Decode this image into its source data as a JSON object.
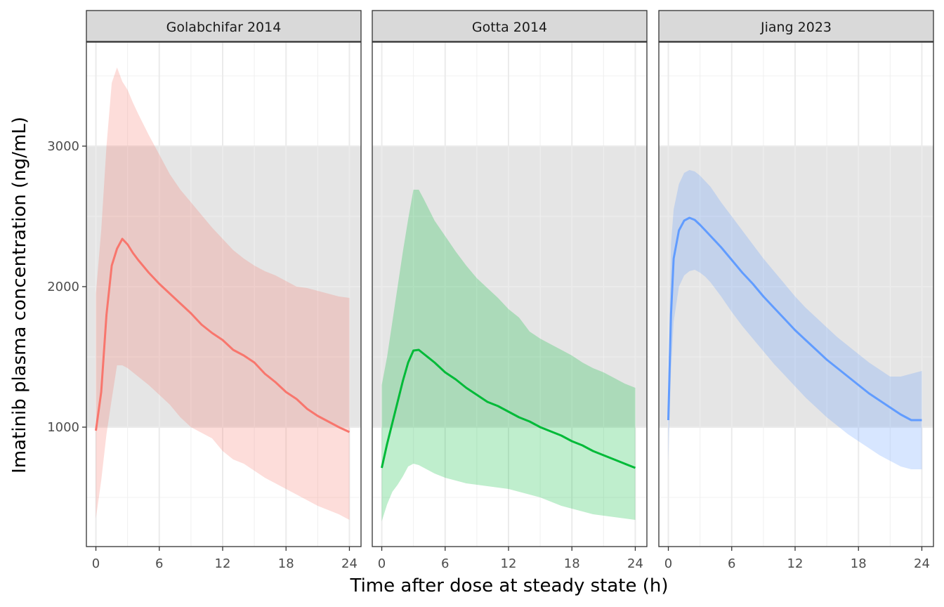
{
  "chart_data": {
    "type": "line",
    "xlabel": "Time after dose at steady state (h)",
    "ylabel": "Imatinib plasma concentration (ng/mL)",
    "xlim": [
      -0.9,
      25.1
    ],
    "ylim": [
      150,
      3740
    ],
    "x_ticks": [
      0,
      6,
      12,
      18,
      24
    ],
    "y_ticks": [
      1000,
      2000,
      3000
    ],
    "x_tick_labels": [
      "0",
      "6",
      "12",
      "18",
      "24"
    ],
    "y_tick_labels": [
      "1000",
      "2000",
      "3000"
    ],
    "grid": true,
    "reference_band": {
      "ymin": 1000,
      "ymax": 3000,
      "color": "#e5e5e5"
    },
    "panels": [
      {
        "strip": "Golabchifar 2014",
        "color": "#F8766D",
        "fill": "#F8766D",
        "x": [
          0,
          0.5,
          1,
          1.5,
          2,
          2.5,
          3,
          3.5,
          4,
          5,
          6,
          7,
          8,
          9,
          10,
          11,
          12,
          13,
          14,
          15,
          16,
          17,
          18,
          19,
          20,
          21,
          22,
          23,
          24
        ],
        "median": [
          975,
          1250,
          1800,
          2150,
          2270,
          2340,
          2300,
          2240,
          2190,
          2100,
          2020,
          1950,
          1880,
          1810,
          1730,
          1670,
          1620,
          1550,
          1510,
          1460,
          1380,
          1320,
          1250,
          1200,
          1130,
          1080,
          1040,
          1000,
          965
        ],
        "lower": [
          350,
          620,
          950,
          1200,
          1440,
          1440,
          1420,
          1390,
          1360,
          1300,
          1230,
          1160,
          1070,
          1000,
          960,
          920,
          830,
          770,
          740,
          690,
          640,
          600,
          560,
          520,
          480,
          440,
          410,
          380,
          340
        ],
        "upper": [
          1950,
          2400,
          3000,
          3450,
          3560,
          3460,
          3400,
          3310,
          3230,
          3080,
          2940,
          2800,
          2690,
          2600,
          2510,
          2420,
          2340,
          2260,
          2200,
          2150,
          2110,
          2080,
          2040,
          2000,
          1990,
          1970,
          1950,
          1930,
          1920
        ]
      },
      {
        "strip": "Gotta 2014",
        "color": "#00BA38",
        "fill": "#00BA38",
        "x": [
          0,
          0.5,
          1,
          1.5,
          2,
          2.5,
          3,
          3.5,
          4,
          5,
          6,
          7,
          8,
          9,
          10,
          11,
          12,
          13,
          14,
          15,
          16,
          17,
          18,
          19,
          20,
          21,
          22,
          23,
          24
        ],
        "median": [
          710,
          880,
          1030,
          1180,
          1330,
          1460,
          1545,
          1550,
          1520,
          1460,
          1390,
          1340,
          1280,
          1230,
          1180,
          1150,
          1110,
          1070,
          1040,
          1000,
          970,
          940,
          900,
          870,
          830,
          800,
          770,
          740,
          710
        ],
        "lower": [
          330,
          450,
          540,
          590,
          650,
          720,
          740,
          730,
          710,
          670,
          640,
          620,
          600,
          590,
          580,
          570,
          560,
          540,
          520,
          500,
          470,
          440,
          420,
          400,
          380,
          370,
          360,
          350,
          340
        ],
        "upper": [
          1300,
          1500,
          1750,
          2000,
          2250,
          2480,
          2690,
          2690,
          2620,
          2470,
          2360,
          2250,
          2150,
          2060,
          1990,
          1920,
          1840,
          1780,
          1680,
          1630,
          1590,
          1550,
          1510,
          1460,
          1420,
          1390,
          1350,
          1310,
          1280
        ]
      },
      {
        "strip": "Jiang 2023",
        "color": "#619CFF",
        "fill": "#619CFF",
        "x": [
          0,
          0.25,
          0.5,
          1,
          1.5,
          2,
          2.5,
          3,
          3.5,
          4,
          5,
          6,
          7,
          8,
          9,
          10,
          11,
          12,
          13,
          14,
          15,
          16,
          17,
          18,
          19,
          20,
          21,
          22,
          23,
          24
        ],
        "median": [
          1050,
          1800,
          2200,
          2400,
          2470,
          2490,
          2475,
          2440,
          2400,
          2360,
          2280,
          2190,
          2100,
          2020,
          1930,
          1850,
          1770,
          1690,
          1620,
          1550,
          1480,
          1420,
          1360,
          1300,
          1240,
          1190,
          1140,
          1090,
          1050,
          1050
        ],
        "lower": [
          760,
          1400,
          1750,
          2000,
          2080,
          2110,
          2120,
          2100,
          2070,
          2030,
          1930,
          1820,
          1720,
          1630,
          1540,
          1450,
          1370,
          1290,
          1210,
          1140,
          1070,
          1010,
          950,
          900,
          850,
          800,
          760,
          720,
          700,
          700
        ],
        "upper": [
          1300,
          2300,
          2550,
          2730,
          2810,
          2830,
          2820,
          2790,
          2750,
          2710,
          2600,
          2500,
          2400,
          2300,
          2200,
          2110,
          2020,
          1930,
          1850,
          1780,
          1710,
          1640,
          1580,
          1520,
          1460,
          1410,
          1360,
          1360,
          1380,
          1400
        ]
      }
    ]
  }
}
